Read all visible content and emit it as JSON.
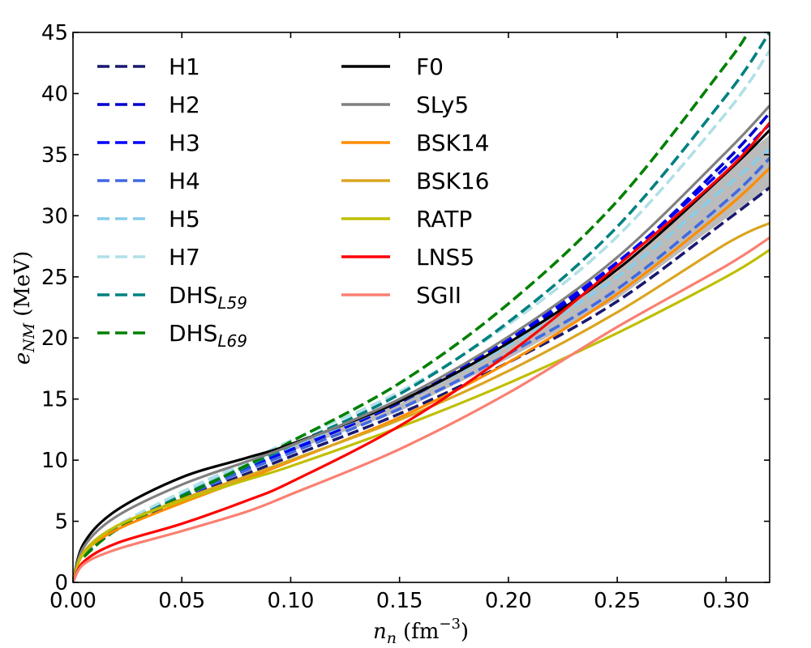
{
  "chart_data": {
    "type": "line",
    "xlabel": {
      "main": "n",
      "sub": "n",
      "unit": "(fm",
      "unit_sup": "−3",
      "unit_close": ")"
    },
    "ylabel": {
      "main": "e",
      "sub": "NM",
      "unit": "(MeV)"
    },
    "xlim": [
      0.0,
      0.32
    ],
    "ylim": [
      0,
      45
    ],
    "xticks": [
      0.0,
      0.05,
      0.1,
      0.15,
      0.2,
      0.25,
      0.3
    ],
    "xtick_labels": [
      "0.00",
      "0.05",
      "0.10",
      "0.15",
      "0.20",
      "0.25",
      "0.30"
    ],
    "yticks": [
      0,
      5,
      10,
      15,
      20,
      25,
      30,
      35,
      40,
      45
    ],
    "ytick_labels": [
      "0",
      "5",
      "10",
      "15",
      "20",
      "25",
      "30",
      "35",
      "40",
      "45"
    ],
    "grid": false,
    "legend": {
      "placement": "top-left",
      "columns": 2
    },
    "band": {
      "color": "#bbbbbb",
      "x": [
        0.1,
        0.15,
        0.2,
        0.25,
        0.3,
        0.32
      ],
      "lower": [
        10.7,
        14.0,
        18.3,
        23.2,
        29.8,
        32.4
      ],
      "upper": [
        11.2,
        14.6,
        19.4,
        25.4,
        33.8,
        36.6
      ]
    },
    "series": [
      {
        "name": "H1",
        "sub": "",
        "color": "#191970",
        "dash": true,
        "x": [
          0.005,
          0.02,
          0.05,
          0.08,
          0.1,
          0.15,
          0.2,
          0.25,
          0.3,
          0.32
        ],
        "y": [
          2.2,
          4.3,
          6.8,
          8.9,
          10.3,
          13.8,
          18.0,
          23.0,
          29.6,
          32.3
        ]
      },
      {
        "name": "H2",
        "sub": "",
        "color": "#0000cd",
        "dash": true,
        "x": [
          0.005,
          0.02,
          0.05,
          0.08,
          0.1,
          0.15,
          0.2,
          0.25,
          0.3,
          0.32
        ],
        "y": [
          2.2,
          4.3,
          6.9,
          9.3,
          10.8,
          14.7,
          19.7,
          26.0,
          34.5,
          38.4
        ]
      },
      {
        "name": "H3",
        "sub": "",
        "color": "#0000ff",
        "dash": true,
        "x": [
          0.005,
          0.02,
          0.05,
          0.08,
          0.1,
          0.15,
          0.2,
          0.25,
          0.3,
          0.32
        ],
        "y": [
          2.2,
          4.4,
          7.0,
          9.4,
          10.9,
          14.8,
          19.9,
          26.2,
          34.0,
          37.5
        ]
      },
      {
        "name": "H4",
        "sub": "",
        "color": "#4169e1",
        "dash": true,
        "x": [
          0.005,
          0.02,
          0.05,
          0.08,
          0.1,
          0.15,
          0.2,
          0.25,
          0.3,
          0.32
        ],
        "y": [
          2.2,
          4.4,
          7.0,
          9.2,
          10.6,
          14.2,
          18.7,
          24.0,
          31.2,
          34.7
        ]
      },
      {
        "name": "H5",
        "sub": "",
        "color": "#87ceeb",
        "dash": true,
        "x": [
          0.005,
          0.02,
          0.05,
          0.08,
          0.1,
          0.15,
          0.2,
          0.25,
          0.3,
          0.32
        ],
        "y": [
          2.3,
          4.5,
          7.2,
          9.6,
          11.1,
          14.8,
          19.4,
          25.0,
          32.4,
          35.5
        ]
      },
      {
        "name": "H7",
        "sub": "",
        "color": "#b0e0e6",
        "dash": true,
        "x": [
          0.005,
          0.02,
          0.05,
          0.08,
          0.1,
          0.15,
          0.2,
          0.25,
          0.3,
          0.32
        ],
        "y": [
          2.3,
          4.6,
          7.4,
          9.9,
          11.6,
          15.6,
          21.1,
          28.3,
          38.4,
          43.5
        ]
      },
      {
        "name": "DHS",
        "sub": "L59",
        "color": "#008080",
        "dash": true,
        "x": [
          0.005,
          0.02,
          0.05,
          0.08,
          0.1,
          0.15,
          0.2,
          0.25,
          0.3,
          0.32
        ],
        "y": [
          2.2,
          4.4,
          7.1,
          9.5,
          11.2,
          15.4,
          21.3,
          29.1,
          39.8,
          45.0
        ]
      },
      {
        "name": "DHS",
        "sub": "L69",
        "color": "#008000",
        "dash": true,
        "x": [
          0.005,
          0.02,
          0.05,
          0.08,
          0.1,
          0.15,
          0.2,
          0.25,
          0.3,
          0.31
        ],
        "y": [
          2.1,
          4.3,
          7.0,
          9.6,
          11.5,
          16.3,
          22.8,
          31.2,
          42.4,
          45.0
        ]
      },
      {
        "name": "F0",
        "sub": "",
        "color": "#000000",
        "dash": false,
        "x": [
          0.0,
          0.005,
          0.02,
          0.05,
          0.08,
          0.1,
          0.15,
          0.2,
          0.25,
          0.3,
          0.32
        ],
        "y": [
          0.0,
          3.2,
          5.9,
          8.6,
          10.2,
          11.3,
          14.8,
          19.6,
          25.6,
          33.5,
          37.0
        ]
      },
      {
        "name": "SLy5",
        "sub": "",
        "color": "#808080",
        "dash": false,
        "x": [
          0.0,
          0.005,
          0.02,
          0.05,
          0.08,
          0.1,
          0.15,
          0.2,
          0.25,
          0.3,
          0.32
        ],
        "y": [
          0.0,
          2.9,
          5.4,
          8.0,
          9.9,
          11.2,
          15.0,
          20.1,
          26.6,
          35.2,
          39.0
        ]
      },
      {
        "name": "BSK14",
        "sub": "",
        "color": "#ff8c00",
        "dash": false,
        "x": [
          0.0,
          0.005,
          0.02,
          0.05,
          0.08,
          0.1,
          0.15,
          0.2,
          0.25,
          0.3,
          0.32
        ],
        "y": [
          0.0,
          2.4,
          4.3,
          6.5,
          8.5,
          9.9,
          13.5,
          18.0,
          23.6,
          30.6,
          33.9
        ]
      },
      {
        "name": "BSK16",
        "sub": "",
        "color": "#daa520",
        "dash": false,
        "x": [
          0.0,
          0.005,
          0.02,
          0.05,
          0.08,
          0.1,
          0.15,
          0.2,
          0.25,
          0.3,
          0.32
        ],
        "y": [
          0.0,
          2.5,
          4.6,
          6.8,
          8.7,
          10.0,
          13.3,
          17.3,
          22.1,
          27.7,
          29.4
        ]
      },
      {
        "name": "RATP",
        "sub": "",
        "color": "#bfbf00",
        "dash": false,
        "x": [
          0.0,
          0.005,
          0.02,
          0.05,
          0.08,
          0.1,
          0.15,
          0.2,
          0.25,
          0.3,
          0.32
        ],
        "y": [
          0.0,
          2.4,
          4.6,
          6.7,
          8.4,
          9.5,
          12.7,
          16.3,
          20.4,
          25.0,
          27.2
        ]
      },
      {
        "name": "LNS5",
        "sub": "",
        "color": "#ff0000",
        "dash": false,
        "x": [
          0.0,
          0.005,
          0.02,
          0.05,
          0.08,
          0.1,
          0.15,
          0.2,
          0.25,
          0.3,
          0.32
        ],
        "y": [
          0.0,
          1.7,
          3.2,
          4.8,
          6.7,
          8.2,
          12.8,
          18.7,
          25.9,
          33.6,
          37.6
        ]
      },
      {
        "name": "SGII",
        "sub": "",
        "color": "#fa8072",
        "dash": false,
        "x": [
          0.0,
          0.005,
          0.02,
          0.05,
          0.08,
          0.1,
          0.15,
          0.2,
          0.25,
          0.3,
          0.32
        ],
        "y": [
          0.0,
          1.5,
          2.7,
          4.2,
          5.8,
          7.2,
          10.9,
          15.5,
          20.9,
          25.9,
          28.2
        ]
      }
    ]
  }
}
